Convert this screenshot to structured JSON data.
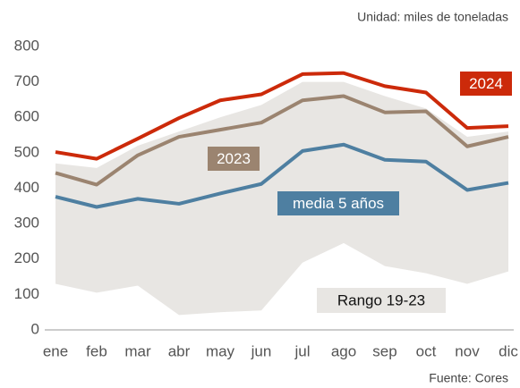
{
  "chart_data": {
    "type": "line",
    "subtitle": "Unidad: miles de toneladas",
    "source": "Fuente: Cores",
    "categories": [
      "ene",
      "feb",
      "mar",
      "abr",
      "may",
      "jun",
      "jul",
      "ago",
      "sep",
      "oct",
      "nov",
      "dic"
    ],
    "range": {
      "name": "Rango 19-23",
      "color": "#e8e6e3",
      "upper": [
        470,
        457,
        520,
        560,
        600,
        635,
        700,
        700,
        660,
        625,
        545,
        560
      ],
      "lower": [
        130,
        105,
        125,
        42,
        50,
        55,
        190,
        245,
        180,
        160,
        130,
        165
      ]
    },
    "series": [
      {
        "name": "media 5 años",
        "color": "#4e7fa1",
        "values": [
          376,
          347,
          370,
          356,
          385,
          412,
          505,
          523,
          480,
          475,
          395,
          415
        ]
      },
      {
        "name": "2023",
        "color": "#9b8470",
        "values": [
          443,
          410,
          493,
          545,
          565,
          585,
          648,
          660,
          614,
          617,
          518,
          545
        ]
      },
      {
        "name": "2024",
        "color": "#cc2a0a",
        "values": [
          502,
          483,
          540,
          598,
          648,
          665,
          722,
          725,
          688,
          670,
          570,
          575
        ]
      }
    ],
    "ylim": [
      0,
      800
    ],
    "yticks": [
      0,
      100,
      200,
      300,
      400,
      500,
      600,
      700,
      800
    ],
    "grid": false
  }
}
